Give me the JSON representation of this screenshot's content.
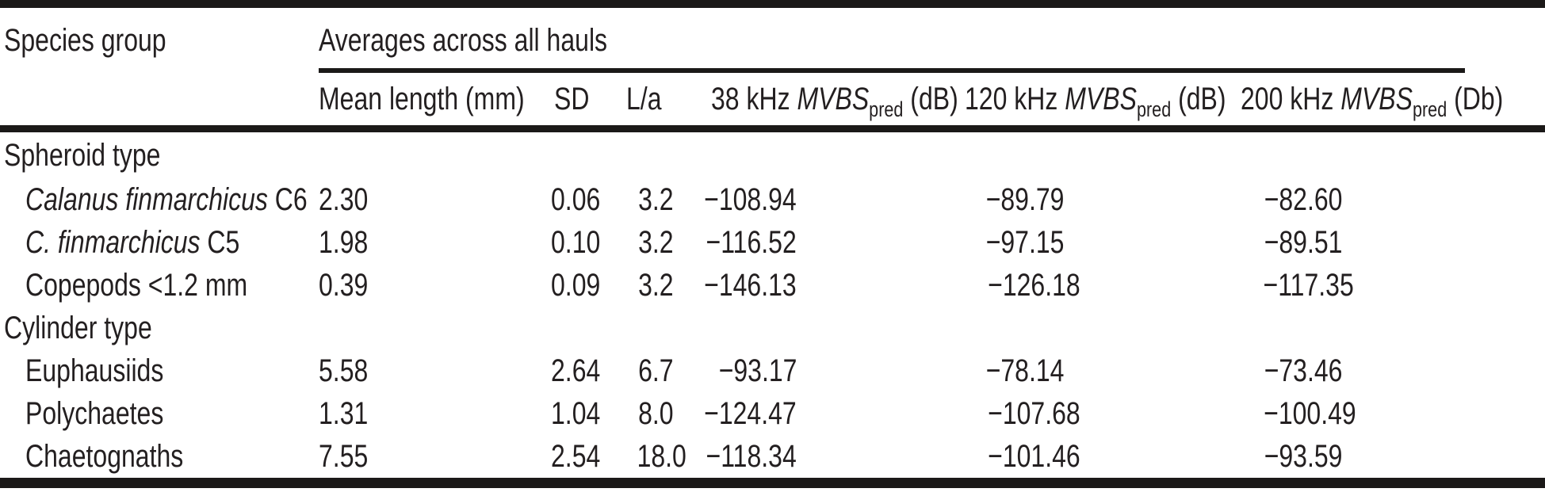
{
  "header": {
    "species_group": "Species group",
    "spanner": "Averages across all hauls"
  },
  "columns": [
    {
      "label": "Mean length (mm)"
    },
    {
      "label": "SD"
    },
    {
      "label": "L/a"
    },
    {
      "prefix": "38 kHz ",
      "italic": "MVBS",
      "subscript": "pred",
      "suffix": " (dB)"
    },
    {
      "prefix": "120 kHz ",
      "italic": "MVBS",
      "subscript": "pred",
      "suffix": " (dB)"
    },
    {
      "prefix": "200 kHz ",
      "italic": "MVBS",
      "subscript": "pred",
      "suffix": " (Db)"
    }
  ],
  "rows": [
    {
      "name_roman": "Spheroid type"
    },
    {
      "name_italic": "Calanus finmarchicus",
      "name_roman": " C6",
      "values": [
        "2.30",
        "0.06",
        "3.2",
        "−108.94",
        "−89.79",
        "−82.60"
      ]
    },
    {
      "name_italic": "C. finmarchicus",
      "name_roman": " C5",
      "values": [
        "1.98",
        "0.10",
        "3.2",
        "−116.52",
        "−97.15",
        "−89.51"
      ]
    },
    {
      "name_roman": "Copepods <1.2 mm",
      "values": [
        "0.39",
        "0.09",
        "3.2",
        "−146.13",
        "−126.18",
        "−117.35"
      ]
    },
    {
      "name_roman": "Cylinder type"
    },
    {
      "name_roman": "Euphausiids",
      "values": [
        "5.58",
        "2.64",
        "6.7",
        "−93.17",
        "−78.14",
        "−73.46"
      ]
    },
    {
      "name_roman": "Polychaetes",
      "values": [
        "1.31",
        "1.04",
        "8.0",
        "−124.47",
        "−107.68",
        "−100.49"
      ]
    },
    {
      "name_roman": "Chaetognaths",
      "values": [
        "7.55",
        "2.54",
        "18.0",
        "−118.34",
        "−101.46",
        "−93.59"
      ]
    }
  ]
}
